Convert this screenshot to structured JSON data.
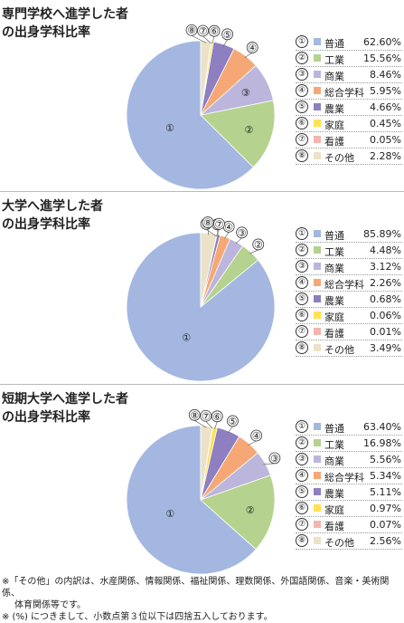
{
  "colors": [
    "#a4b7e0",
    "#b5d28e",
    "#bcb5dc",
    "#f5a875",
    "#8d7fc0",
    "#ffe154",
    "#f2b5ae",
    "#ebe2c8"
  ],
  "chart_data": [
    {
      "type": "pie",
      "title_lines": [
        "専門学校へ進学した者",
        "の出身学科比率"
      ],
      "categories": [
        "普通",
        "工業",
        "商業",
        "総合学科",
        "農業",
        "家庭",
        "看護",
        "その他"
      ],
      "slice_labels": [
        "①",
        "②",
        "③",
        "④",
        "⑤",
        "⑥",
        "⑦",
        "⑧"
      ],
      "values": [
        62.6,
        15.56,
        8.46,
        5.95,
        4.66,
        0.45,
        0.05,
        2.28
      ],
      "value_labels": [
        "62.60%",
        "15.56%",
        "8.46%",
        "5.95%",
        "4.66%",
        "0.45%",
        "0.05%",
        "2.28%"
      ]
    },
    {
      "type": "pie",
      "title_lines": [
        "大学へ進学した者",
        "の出身学科比率"
      ],
      "categories": [
        "普通",
        "工業",
        "商業",
        "総合学科",
        "農業",
        "家庭",
        "看護",
        "その他"
      ],
      "slice_labels": [
        "①",
        "②",
        "③",
        "④",
        "⑤",
        "⑥",
        "⑦",
        "⑧"
      ],
      "values": [
        85.89,
        4.48,
        3.12,
        2.26,
        0.68,
        0.06,
        0.01,
        3.49
      ],
      "value_labels": [
        "85.89%",
        "4.48%",
        "3.12%",
        "2.26%",
        "0.68%",
        "0.06%",
        "0.01%",
        "3.49%"
      ]
    },
    {
      "type": "pie",
      "title_lines": [
        "短期大学へ進学した者",
        "の出身学科比率"
      ],
      "categories": [
        "普通",
        "工業",
        "商業",
        "総合学科",
        "農業",
        "家庭",
        "看護",
        "その他"
      ],
      "slice_labels": [
        "①",
        "②",
        "③",
        "④",
        "⑤",
        "⑥",
        "⑦",
        "⑧"
      ],
      "values": [
        63.4,
        16.98,
        5.56,
        5.34,
        5.11,
        0.97,
        0.07,
        2.56
      ],
      "value_labels": [
        "63.40%",
        "16.98%",
        "5.56%",
        "5.34%",
        "5.11%",
        "0.97%",
        "0.07%",
        "2.56%"
      ]
    }
  ],
  "notes": [
    "※「その他」の内訳は、水産関係、情報関係、福祉関係、理数関係、外国語関係、音楽・美術関係、",
    "体育関係等です。",
    "※ (%) につきまして、小数点第３位以下は四捨五入しております。"
  ]
}
